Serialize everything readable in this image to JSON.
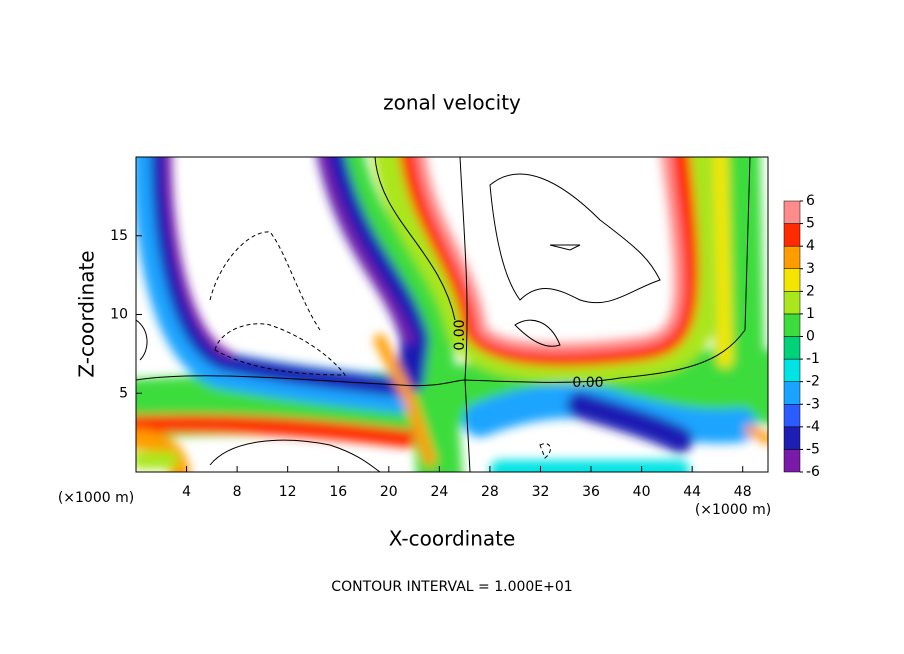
{
  "chart_data": {
    "type": "contour",
    "title": "zonal velocity",
    "xlabel": "X-coordinate",
    "ylabel": "Z-coordinate",
    "y_unit": "(×1000 m)",
    "x_unit": "(×1000 m)",
    "xlim": [
      0,
      50
    ],
    "ylim": [
      0,
      20
    ],
    "xticks": [
      4,
      8,
      12,
      16,
      20,
      24,
      28,
      32,
      36,
      40,
      44,
      48
    ],
    "yticks": [
      5,
      10,
      15
    ],
    "colorbar": {
      "levels": [
        -6,
        -5,
        -4,
        -3,
        -2,
        -1,
        0,
        1,
        2,
        3,
        4,
        5,
        6
      ],
      "colors": [
        "#7a1aa8",
        "#1e1eb4",
        "#2a5cff",
        "#1aa4ff",
        "#00e4e4",
        "#00d27a",
        "#3cdc3c",
        "#aae61e",
        "#f2e600",
        "#ff9c00",
        "#ff2a00",
        "#ff8c8c"
      ]
    },
    "contour_labels": [
      {
        "value": 0,
        "label": "0.00"
      },
      {
        "value": 0,
        "label": "0.00"
      }
    ],
    "footer": "CONTOUR INTERVAL = 1.000E+01"
  }
}
